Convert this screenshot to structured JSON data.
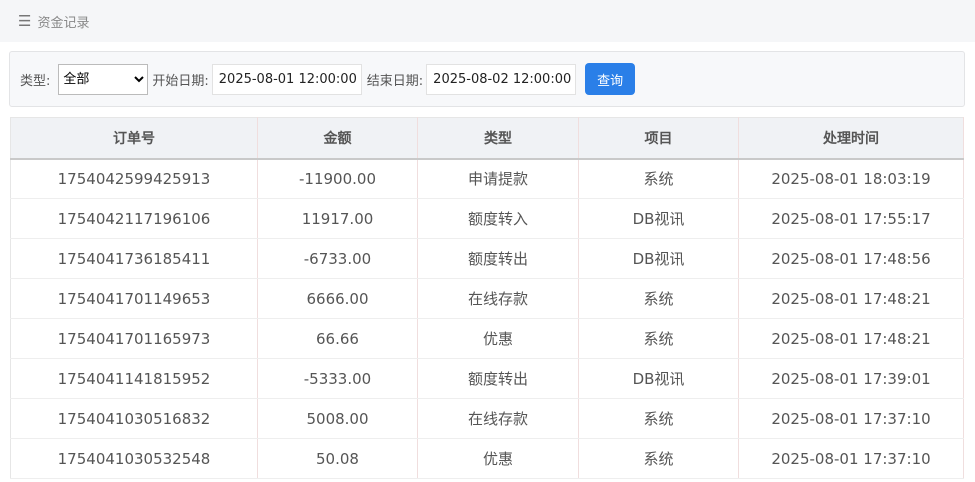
{
  "header": {
    "icon": "menu-icon",
    "title": "资金记录"
  },
  "filter": {
    "type_label": "类型:",
    "type_value": "全部",
    "start_label": "开始日期:",
    "start_value": "2025-08-01 12:00:00",
    "end_label": "结束日期:",
    "end_value": "2025-08-02 12:00:00",
    "query_label": "查询",
    "accent": "#2a7fe8"
  },
  "table": {
    "columns": [
      "订单号",
      "金额",
      "类型",
      "项目",
      "处理时间"
    ],
    "rows": [
      [
        "1754042599425913",
        "-11900.00",
        "申请提款",
        "系统",
        "2025-08-01 18:03:19"
      ],
      [
        "1754042117196106",
        "11917.00",
        "额度转入",
        "DB视讯",
        "2025-08-01 17:55:17"
      ],
      [
        "1754041736185411",
        "-6733.00",
        "额度转出",
        "DB视讯",
        "2025-08-01 17:48:56"
      ],
      [
        "1754041701149653",
        "6666.00",
        "在线存款",
        "系统",
        "2025-08-01 17:48:21"
      ],
      [
        "1754041701165973",
        "66.66",
        "优惠",
        "系统",
        "2025-08-01 17:48:21"
      ],
      [
        "1754041141815952",
        "-5333.00",
        "额度转出",
        "DB视讯",
        "2025-08-01 17:39:01"
      ],
      [
        "1754041030516832",
        "5008.00",
        "在线存款",
        "系统",
        "2025-08-01 17:37:10"
      ],
      [
        "1754041030532548",
        "50.08",
        "优惠",
        "系统",
        "2025-08-01 17:37:10"
      ]
    ]
  }
}
